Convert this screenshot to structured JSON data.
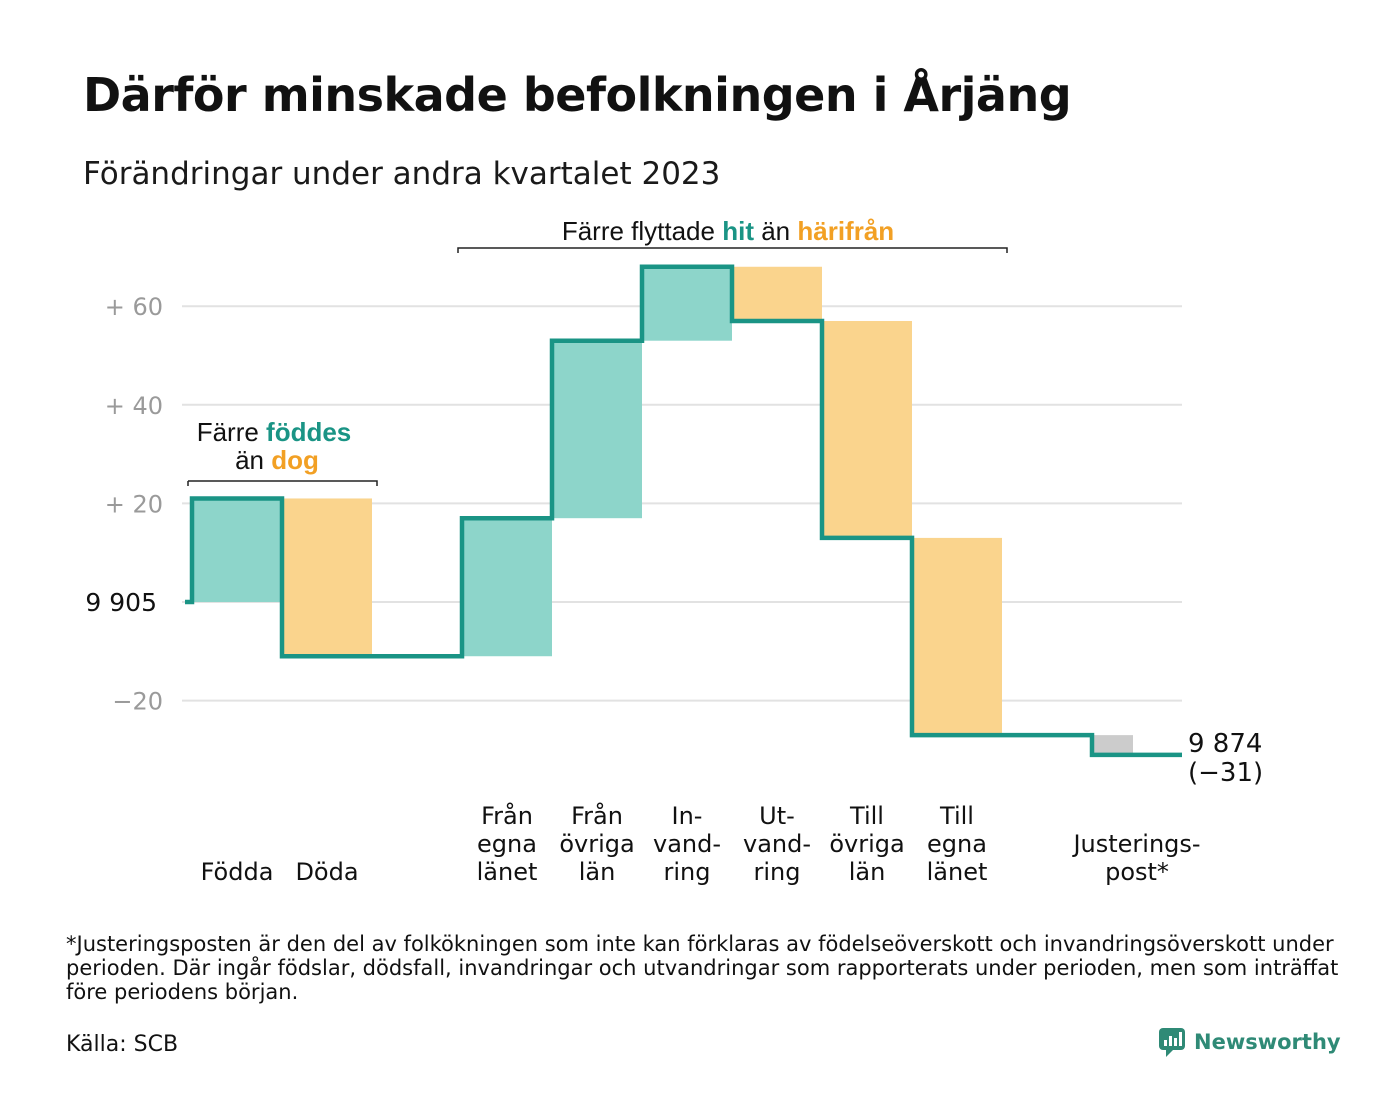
{
  "title": "Därför minskade befolkningen i Årjäng",
  "subtitle": "Förändringar under andra kvartalet 2023",
  "footnote": "*Justeringsposten är den del av folkökningen som inte kan förklaras av födelseöverskott och invandringsöverskott under perioden. Där ingår födslar, dödsfall, invandringar och utvandringar som rapporterats under perioden, men som inträffat före periodens början.",
  "source": "Källa: SCB",
  "logo": "Newsworthy",
  "colors": {
    "increase": "#8dd5ca",
    "decrease": "#fad48d",
    "adjustment": "#cccccc",
    "line": "#1a9485",
    "grid": "#e2e2e2",
    "highlight_teal": "#1a9485",
    "highlight_orange": "#f2a024"
  },
  "chart_data": {
    "type": "waterfall",
    "start_value": 9905,
    "start_label": "9  905",
    "end_value": 9874,
    "end_label": "9 874",
    "end_change_label": "(−31)",
    "yticks": [
      {
        "value": 60,
        "label": "+  60"
      },
      {
        "value": 40,
        "label": "+  40"
      },
      {
        "value": 20,
        "label": "+  20"
      },
      {
        "value": -20,
        "label": "−20"
      }
    ],
    "ylim": [
      -38,
      70
    ],
    "steps": [
      {
        "label": [
          "Födda"
        ],
        "change": 21,
        "kind": "increase"
      },
      {
        "label": [
          "Döda"
        ],
        "change": -32,
        "kind": "decrease"
      },
      {
        "label": [],
        "change": 0,
        "kind": "gap"
      },
      {
        "label": [
          "Från",
          "egna",
          "länet"
        ],
        "change": 28,
        "kind": "increase"
      },
      {
        "label": [
          "Från",
          "övriga",
          "län"
        ],
        "change": 36,
        "kind": "increase"
      },
      {
        "label": [
          "In-",
          "vand-",
          "ring"
        ],
        "change": 15,
        "kind": "increase"
      },
      {
        "label": [
          "Ut-",
          "vand-",
          "ring"
        ],
        "change": -11,
        "kind": "decrease"
      },
      {
        "label": [
          "Till",
          "övriga",
          "län"
        ],
        "change": -44,
        "kind": "decrease"
      },
      {
        "label": [
          "Till",
          "egna",
          "länet"
        ],
        "change": -40,
        "kind": "decrease"
      },
      {
        "label": [],
        "change": 0,
        "kind": "gap"
      },
      {
        "label": [
          "Justerings-",
          "post*"
        ],
        "change": -4,
        "kind": "adjustment"
      }
    ],
    "annotations": [
      {
        "parts": [
          {
            "text": "Färre ",
            "color": "black"
          },
          {
            "text": "föddes",
            "color": "teal"
          }
        ],
        "parts2": [
          {
            "text": "än ",
            "color": "black"
          },
          {
            "text": "dog",
            "color": "orange"
          }
        ]
      },
      {
        "parts": [
          {
            "text": "Färre flyttade ",
            "color": "black"
          },
          {
            "text": "hit",
            "color": "teal"
          },
          {
            "text": " än ",
            "color": "black"
          },
          {
            "text": "härifrån",
            "color": "orange"
          }
        ]
      }
    ]
  }
}
